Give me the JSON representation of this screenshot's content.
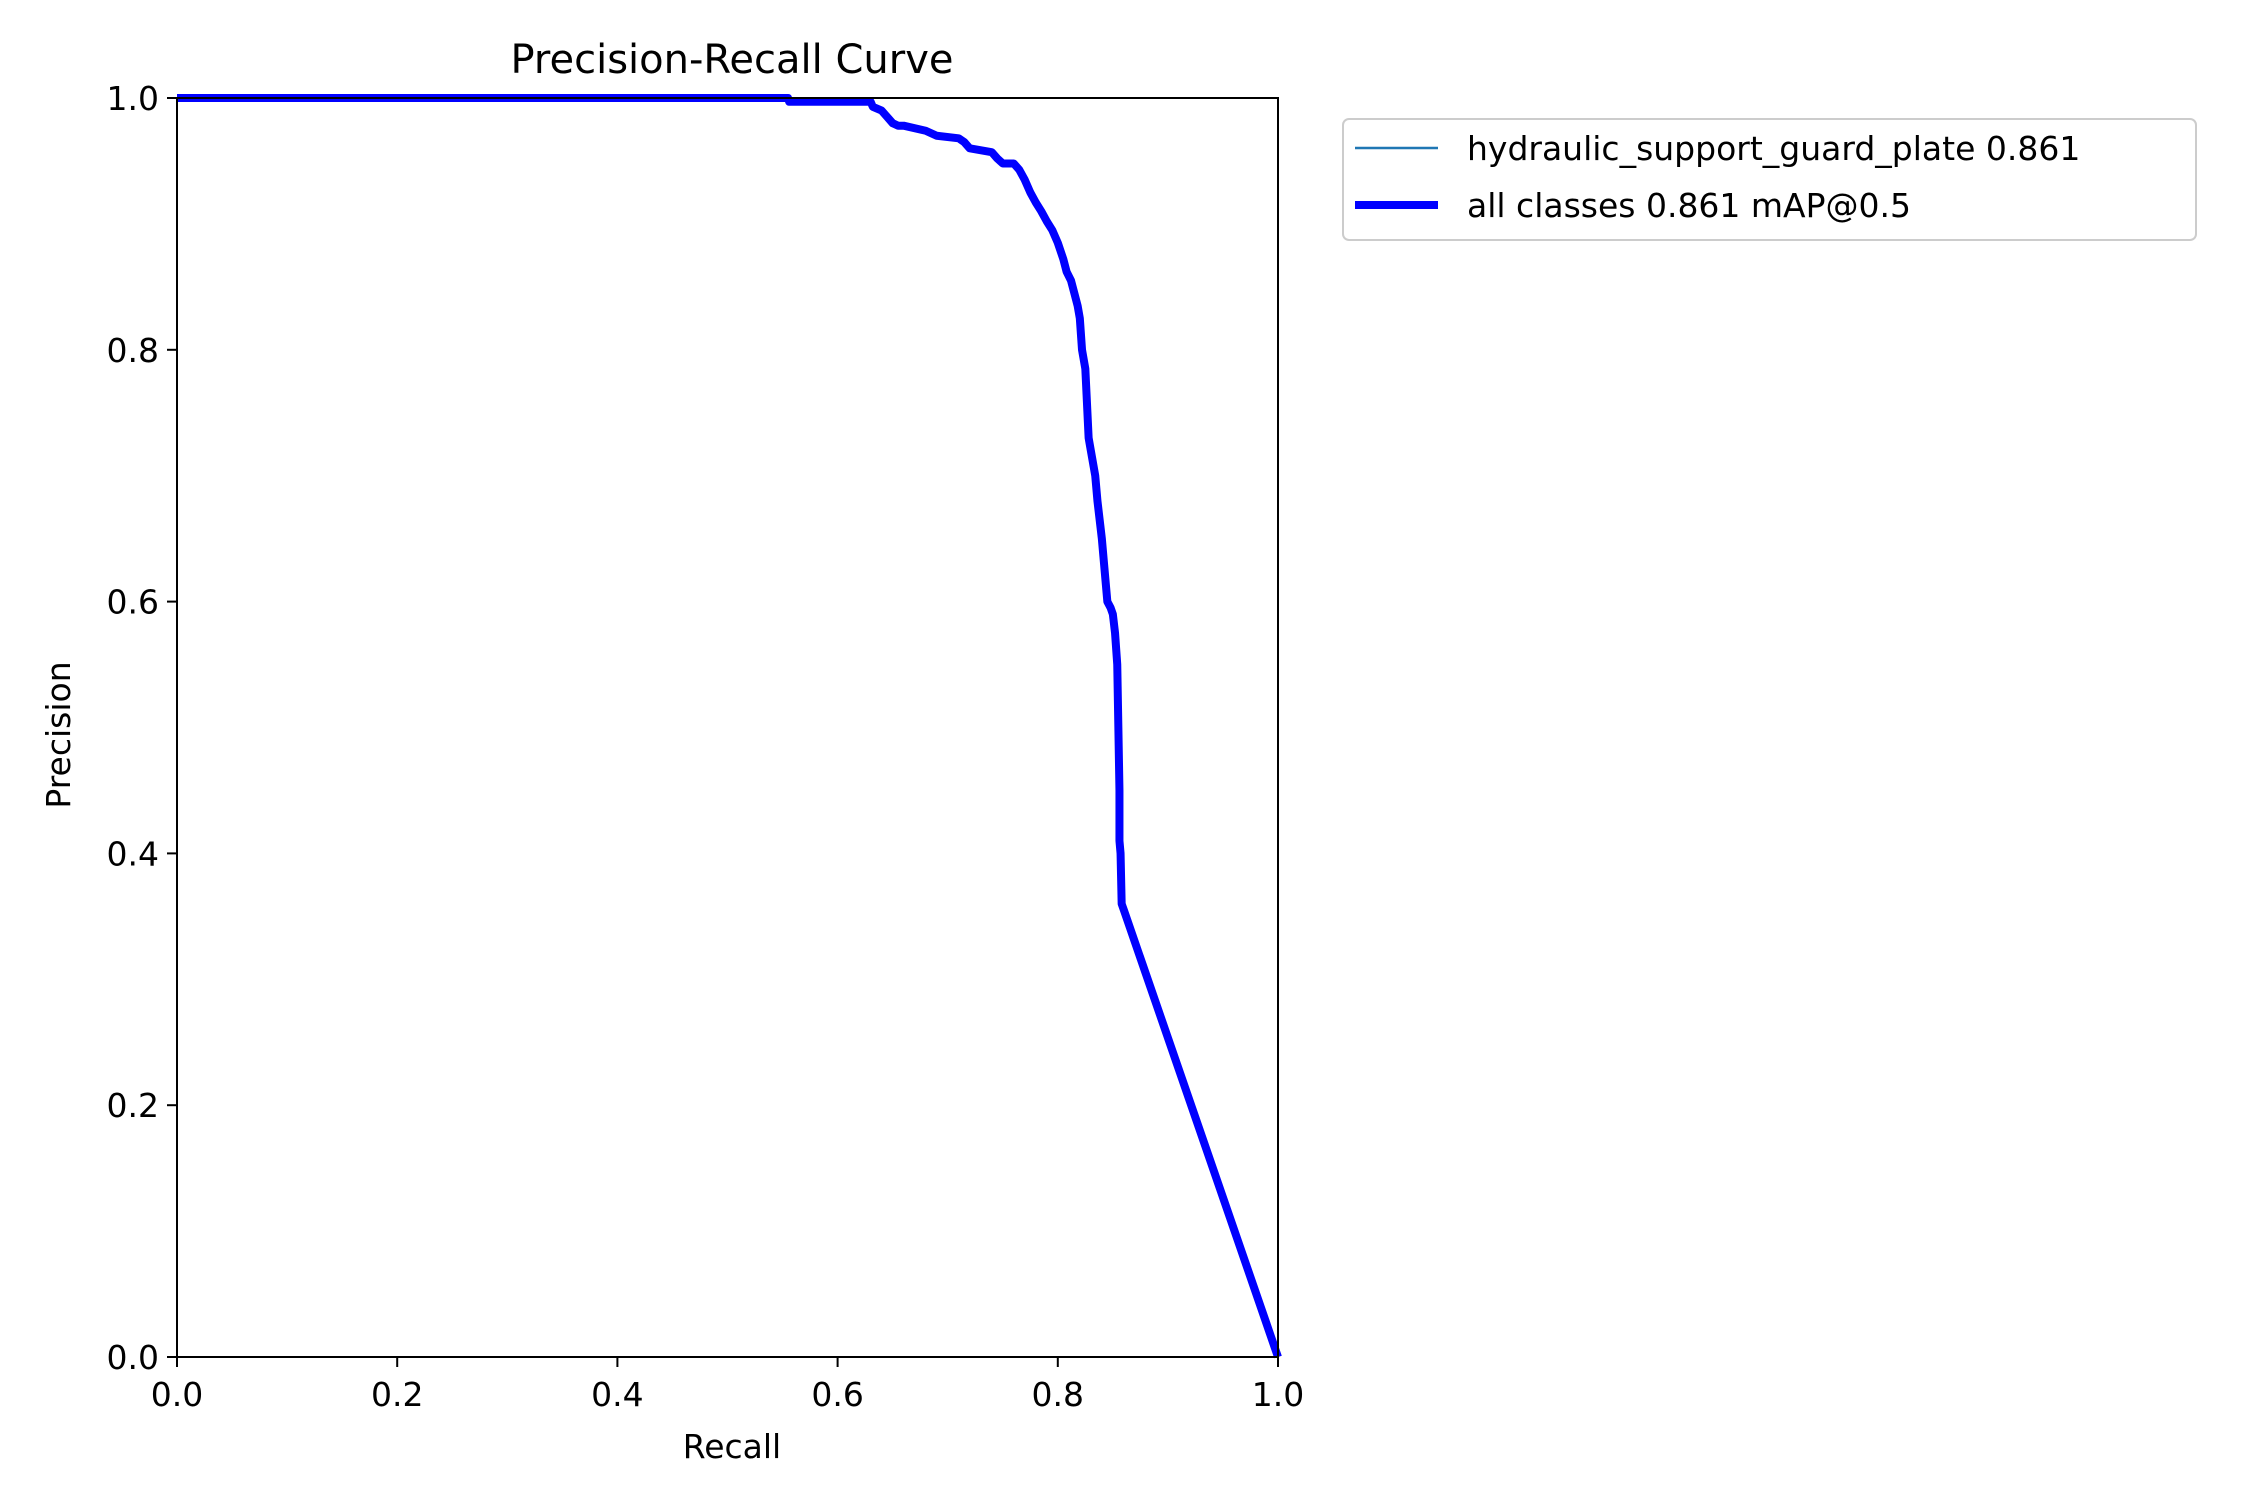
{
  "chart_data": {
    "type": "line",
    "title": "Precision-Recall Curve",
    "xlabel": "Recall",
    "ylabel": "Precision",
    "xlim": [
      0,
      1
    ],
    "ylim": [
      0,
      1
    ],
    "xticks": [
      "0.0",
      "0.2",
      "0.4",
      "0.6",
      "0.8",
      "1.0"
    ],
    "yticks": [
      "0.0",
      "0.2",
      "0.4",
      "0.6",
      "0.8",
      "1.0"
    ],
    "grid": false,
    "legend_position": "outside-top-right",
    "series": [
      {
        "name": "hydraulic_support_guard_plate 0.861",
        "color": "#1f77b4",
        "x": [
          0,
          0.555,
          0.556,
          0.63,
          0.632,
          0.64,
          0.645,
          0.65,
          0.655,
          0.66,
          0.68,
          0.685,
          0.69,
          0.71,
          0.715,
          0.72,
          0.74,
          0.745,
          0.75,
          0.76,
          0.765,
          0.77,
          0.775,
          0.78,
          0.785,
          0.79,
          0.795,
          0.8,
          0.805,
          0.808,
          0.812,
          0.815,
          0.818,
          0.82,
          0.822,
          0.825,
          0.828,
          0.83,
          0.832,
          0.834,
          0.836,
          0.838,
          0.84,
          0.842,
          0.845,
          0.848,
          0.85,
          0.852,
          0.854,
          0.855,
          0.856,
          0.856,
          0.857,
          0.858,
          0.86,
          1.0
        ],
        "y": [
          1.0,
          1.0,
          0.997,
          0.997,
          0.993,
          0.99,
          0.985,
          0.98,
          0.978,
          0.978,
          0.974,
          0.972,
          0.97,
          0.968,
          0.965,
          0.96,
          0.957,
          0.952,
          0.948,
          0.948,
          0.943,
          0.935,
          0.925,
          0.917,
          0.91,
          0.902,
          0.895,
          0.885,
          0.872,
          0.862,
          0.855,
          0.845,
          0.835,
          0.825,
          0.8,
          0.785,
          0.73,
          0.72,
          0.71,
          0.7,
          0.68,
          0.665,
          0.65,
          0.63,
          0.6,
          0.595,
          0.59,
          0.575,
          0.55,
          0.5,
          0.45,
          0.41,
          0.4,
          0.36,
          0.355,
          0.0
        ]
      },
      {
        "name": "all classes 0.861 mAP@0.5",
        "color": "#0000ff",
        "x": [
          0,
          0.555,
          0.556,
          0.63,
          0.632,
          0.64,
          0.645,
          0.65,
          0.655,
          0.66,
          0.68,
          0.685,
          0.69,
          0.71,
          0.715,
          0.72,
          0.74,
          0.745,
          0.75,
          0.76,
          0.765,
          0.77,
          0.775,
          0.78,
          0.785,
          0.79,
          0.795,
          0.8,
          0.805,
          0.808,
          0.812,
          0.815,
          0.818,
          0.82,
          0.822,
          0.825,
          0.828,
          0.83,
          0.832,
          0.834,
          0.836,
          0.838,
          0.84,
          0.842,
          0.845,
          0.848,
          0.85,
          0.852,
          0.854,
          0.855,
          0.856,
          0.856,
          0.857,
          0.858,
          0.86,
          1.0
        ],
        "y": [
          1.0,
          1.0,
          0.997,
          0.997,
          0.993,
          0.99,
          0.985,
          0.98,
          0.978,
          0.978,
          0.974,
          0.972,
          0.97,
          0.968,
          0.965,
          0.96,
          0.957,
          0.952,
          0.948,
          0.948,
          0.943,
          0.935,
          0.925,
          0.917,
          0.91,
          0.902,
          0.895,
          0.885,
          0.872,
          0.862,
          0.855,
          0.845,
          0.835,
          0.825,
          0.8,
          0.785,
          0.73,
          0.72,
          0.71,
          0.7,
          0.68,
          0.665,
          0.65,
          0.63,
          0.6,
          0.595,
          0.59,
          0.575,
          0.55,
          0.5,
          0.45,
          0.41,
          0.4,
          0.36,
          0.355,
          0.0
        ]
      }
    ]
  }
}
